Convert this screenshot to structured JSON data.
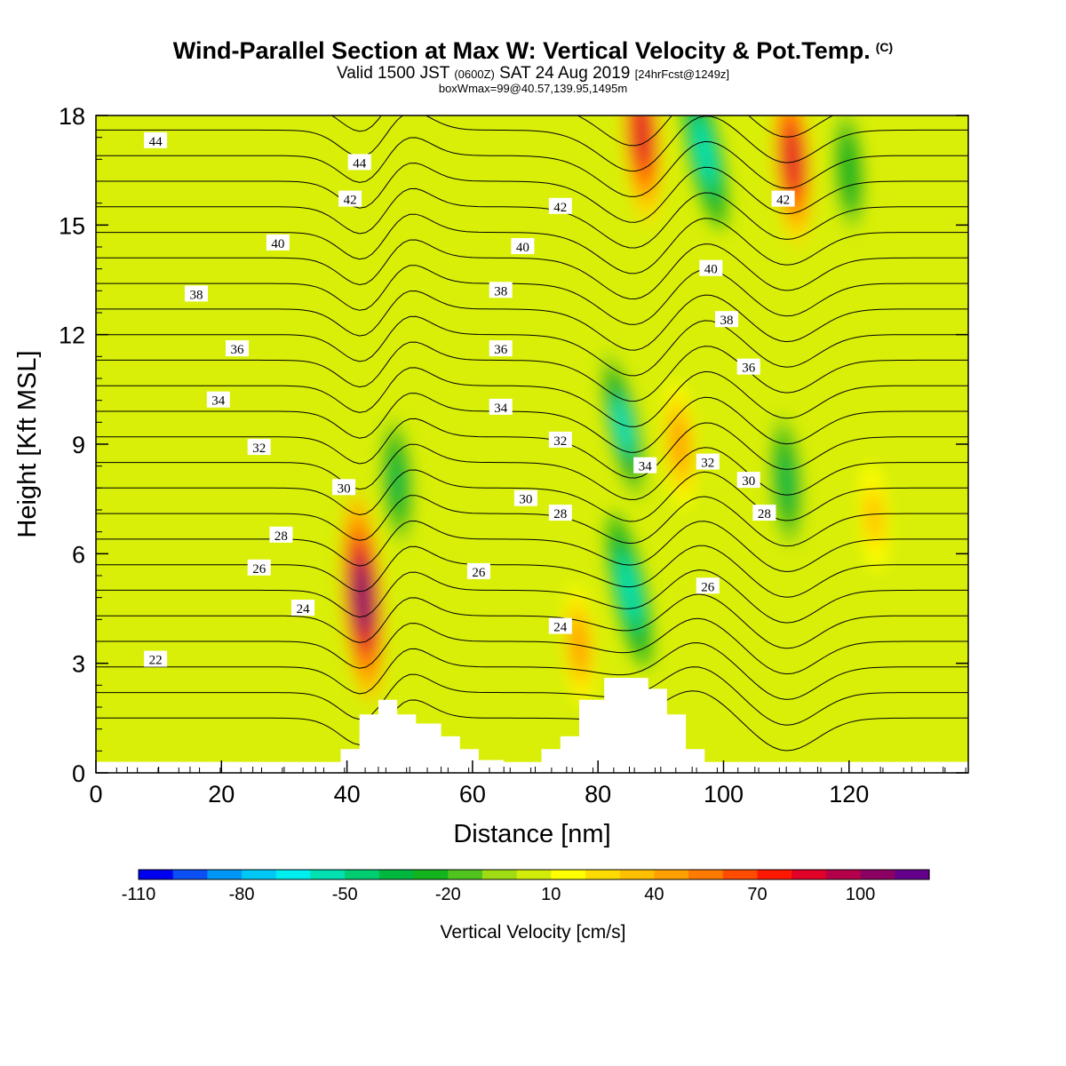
{
  "title": "Wind-Parallel Section at Max W: Vertical Velocity & Pot.Temp.",
  "title_mark": "(C)",
  "subtitle": {
    "a": "Valid 1500 JST",
    "b": "(0600Z)",
    "c": "SAT 24 Aug 2019",
    "d": "[24hrFcst@1249z]"
  },
  "subtitle2": "boxWmax=99@40.57,139.95,1495m",
  "chart_data": {
    "type": "heatmap",
    "xlabel": "Distance [nm]",
    "ylabel": "Height [Kft MSL]",
    "xlim": [
      0,
      139
    ],
    "ylim": [
      0,
      18
    ],
    "x_ticks": [
      "0",
      "20",
      "40",
      "60",
      "80",
      "100",
      "120"
    ],
    "y_ticks": [
      "0",
      "3",
      "6",
      "9",
      "12",
      "15",
      "18"
    ],
    "grid": false,
    "colorbar": {
      "label": "Vertical Velocity [cm/s]",
      "tick_labels": [
        "-110",
        "-80",
        "-50",
        "-20",
        "10",
        "40",
        "70",
        "100"
      ],
      "colors": [
        "#0000f0",
        "#0a50f5",
        "#0096f5",
        "#00c8f5",
        "#00eef0",
        "#00e0b0",
        "#00cc70",
        "#00b840",
        "#14b41e",
        "#50c31e",
        "#a0dc14",
        "#d2ec0a",
        "#ffff00",
        "#ffdc00",
        "#ffc000",
        "#ffa000",
        "#ff7a00",
        "#ff4c00",
        "#ff1800",
        "#e00028",
        "#b4004a",
        "#8c0064",
        "#64008c"
      ]
    },
    "vertical_velocity_cells": [
      {
        "x": 42.5,
        "y": 4.8,
        "w": 100,
        "note": "updraft max"
      },
      {
        "x": 87,
        "y": 17.5,
        "w": 80
      },
      {
        "x": 111,
        "y": 16.8,
        "w": 75
      },
      {
        "x": 93,
        "y": 9.0,
        "w": 40
      },
      {
        "x": 77,
        "y": 3.5,
        "w": 35
      },
      {
        "x": 124,
        "y": 7.0,
        "w": 25
      },
      {
        "x": 84,
        "y": 9.5,
        "w": -60,
        "note": "downdraft"
      },
      {
        "x": 85,
        "y": 5.0,
        "w": -65
      },
      {
        "x": 97,
        "y": 17.0,
        "w": -65
      },
      {
        "x": 110,
        "y": 8.0,
        "w": -45
      },
      {
        "x": 48,
        "y": 8.0,
        "w": -40
      },
      {
        "x": 120,
        "y": 16.5,
        "w": -35
      }
    ],
    "terrain_profile": {
      "x": [
        39,
        39,
        42,
        42,
        45,
        45,
        48,
        48,
        51,
        51,
        55,
        55,
        58,
        58,
        61,
        61,
        65,
        65,
        71,
        71,
        74,
        74,
        77,
        77,
        81,
        81,
        88,
        88,
        91,
        91,
        94,
        94,
        97,
        97
      ],
      "y": [
        0.3,
        0.65,
        0.65,
        1.6,
        1.6,
        2.0,
        2.0,
        1.6,
        1.6,
        1.35,
        1.35,
        1.0,
        1.0,
        0.65,
        0.65,
        0.35,
        0.35,
        0.3,
        0.3,
        0.65,
        0.65,
        1.0,
        1.0,
        2.0,
        2.0,
        2.6,
        2.6,
        2.3,
        2.3,
        1.6,
        1.6,
        0.65,
        0.65,
        0.3
      ]
    },
    "pot_temp_contour_levels": [
      22,
      24,
      26,
      28,
      30,
      32,
      34,
      36,
      38,
      40,
      42,
      44
    ],
    "pot_temp_contour_labels": [
      {
        "text": "44",
        "x": 9.5,
        "y": 17.3
      },
      {
        "text": "44",
        "x": 42,
        "y": 16.7
      },
      {
        "text": "42",
        "x": 40.5,
        "y": 15.7
      },
      {
        "text": "42",
        "x": 74,
        "y": 15.5
      },
      {
        "text": "42",
        "x": 109.5,
        "y": 15.7
      },
      {
        "text": "40",
        "x": 29,
        "y": 14.5
      },
      {
        "text": "40",
        "x": 68,
        "y": 14.4
      },
      {
        "text": "40",
        "x": 98,
        "y": 13.8
      },
      {
        "text": "38",
        "x": 16,
        "y": 13.1
      },
      {
        "text": "38",
        "x": 64.5,
        "y": 13.2
      },
      {
        "text": "38",
        "x": 100.5,
        "y": 12.4
      },
      {
        "text": "36",
        "x": 22.5,
        "y": 11.6
      },
      {
        "text": "36",
        "x": 64.5,
        "y": 11.6
      },
      {
        "text": "36",
        "x": 104,
        "y": 11.1
      },
      {
        "text": "34",
        "x": 19.5,
        "y": 10.2
      },
      {
        "text": "34",
        "x": 64.5,
        "y": 10.0
      },
      {
        "text": "34",
        "x": 87.5,
        "y": 8.4
      },
      {
        "text": "32",
        "x": 26,
        "y": 8.9
      },
      {
        "text": "32",
        "x": 74,
        "y": 9.1
      },
      {
        "text": "32",
        "x": 97.5,
        "y": 8.5
      },
      {
        "text": "30",
        "x": 39.5,
        "y": 7.8
      },
      {
        "text": "30",
        "x": 68.5,
        "y": 7.5
      },
      {
        "text": "30",
        "x": 104,
        "y": 8.0
      },
      {
        "text": "28",
        "x": 29.5,
        "y": 6.5
      },
      {
        "text": "28",
        "x": 74,
        "y": 7.1
      },
      {
        "text": "28",
        "x": 106.5,
        "y": 7.1
      },
      {
        "text": "26",
        "x": 26,
        "y": 5.6
      },
      {
        "text": "26",
        "x": 61,
        "y": 5.5
      },
      {
        "text": "26",
        "x": 97.5,
        "y": 5.1
      },
      {
        "text": "24",
        "x": 33,
        "y": 4.5
      },
      {
        "text": "24",
        "x": 74,
        "y": 4.0
      },
      {
        "text": "22",
        "x": 9.5,
        "y": 3.1
      }
    ]
  }
}
